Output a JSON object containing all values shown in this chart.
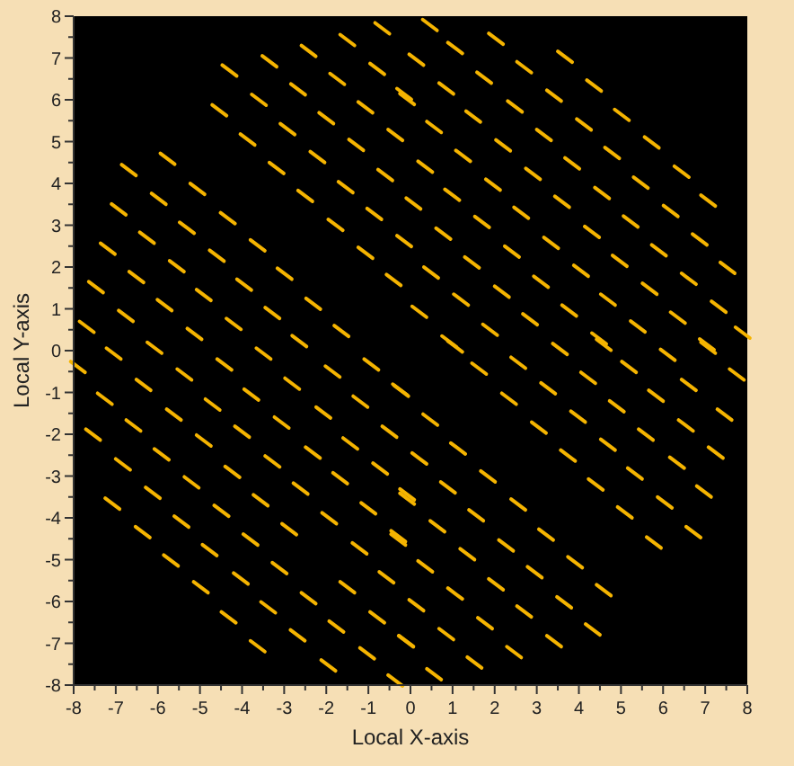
{
  "chart_data": {
    "type": "scatter",
    "xlabel": "Local X-axis",
    "ylabel": "Local Y-axis",
    "color": "#f5b400",
    "grid": false,
    "xlim": [
      -8,
      8
    ],
    "ylim": [
      -8,
      8
    ],
    "xticks": [
      -8,
      {
        "value": -7.5,
        "label": null
      },
      -7,
      {
        "value": -6.5,
        "label": null
      },
      -6,
      {
        "value": -5.5,
        "label": null
      },
      -5,
      {
        "value": -4.5,
        "label": null
      },
      -4,
      {
        "value": -3.5,
        "label": null
      },
      -3,
      {
        "value": -2.5,
        "label": null
      },
      -2,
      {
        "value": -1.5,
        "label": null
      },
      -1,
      {
        "value": -0.5,
        "label": null
      },
      0,
      {
        "value": 0.5,
        "label": null
      },
      1,
      {
        "value": 1.5,
        "label": null
      },
      2,
      {
        "value": 2.5,
        "label": null
      },
      3,
      {
        "value": 3.5,
        "label": null
      },
      4,
      {
        "value": 4.5,
        "label": null
      },
      5,
      {
        "value": 5.5,
        "label": null
      },
      6,
      {
        "value": 6.5,
        "label": null
      },
      7,
      {
        "value": 7.5,
        "label": null
      },
      8
    ],
    "yticks": [
      -8,
      {
        "value": -7.5,
        "label": null
      },
      -7,
      {
        "value": -6.5,
        "label": null
      },
      -6,
      {
        "value": -5.5,
        "label": null
      },
      -5,
      {
        "value": -4.5,
        "label": null
      },
      -4,
      {
        "value": -3.5,
        "label": null
      },
      -3,
      {
        "value": -2.5,
        "label": null
      },
      -2,
      {
        "value": -1.5,
        "label": null
      },
      -1,
      {
        "value": -0.5,
        "label": null
      },
      0,
      {
        "value": 0.5,
        "label": null
      },
      1,
      {
        "value": 1.5,
        "label": null
      },
      2,
      {
        "value": 2.5,
        "label": null
      },
      3,
      {
        "value": 3.5,
        "label": null
      },
      4,
      {
        "value": 4.5,
        "label": null
      },
      5,
      {
        "value": 5.5,
        "label": null
      },
      6,
      {
        "value": 6.5,
        "label": null
      },
      7,
      {
        "value": 7.5,
        "label": null
      },
      8
    ],
    "x": [
      -0.67,
      -2.42,
      -3.35,
      -4.3,
      -1.5,
      -0.79,
      -1.74,
      -2.67,
      -3.6,
      -4.54,
      -1.07,
      -0.15,
      -2.0,
      -2.92,
      -3.87,
      -0.36,
      -1.29,
      -2.21,
      -3.18,
      -5.77,
      -6.69,
      -0.6,
      -1.54,
      -2.5,
      -5.06,
      -5.98,
      -6.93,
      -0.86,
      -1.78,
      -4.34,
      -5.31,
      -6.26,
      -7.19,
      -0.15,
      -1.07,
      -3.63,
      -4.6,
      -5.55,
      -6.51,
      -7.47,
      -0.4,
      -2.99,
      -3.95,
      -4.91,
      -5.84,
      -6.76,
      -7.69,
      -2.31,
      -3.28,
      -4.2,
      -5.13,
      -1.64,
      -2.64,
      0.46,
      2.03,
      3.67,
      4.36,
      5.02,
      5.73,
      6.44,
      7.07,
      1.06,
      2.7,
      3.41,
      4.12,
      4.79,
      5.47,
      6.18,
      6.87,
      7.53,
      0.14,
      1.75,
      2.48,
      3.17,
      3.84,
      4.55,
      5.23,
      5.9,
      6.61,
      7.32,
      7.89,
      0.85,
      1.49,
      2.2,
      2.91,
      3.6,
      4.31,
      4.97,
      5.68,
      6.35,
      7.04,
      -0.08,
      0.56,
      1.25,
      1.96,
      2.63,
      3.34,
      4.05,
      4.69,
      5.4,
      0.35,
      0.99,
      1.7,
      2.41,
      3.1,
      3.77,
      4.48,
      0.07,
      0.78,
      1.46,
      2.17,
      2.84,
      0.49,
      1.2,
      1.89,
      0.21,
      0.92,
      -7.05,
      -6.08,
      -7.9,
      -6.34,
      -5.37,
      -4.42,
      -3.49,
      -7.26,
      -5.62,
      -4.7,
      -3.78,
      -2.81,
      -1.85,
      -0.93,
      -7.54,
      -6.58,
      -4.91,
      -4.0,
      -3.06,
      -2.07,
      -1.19,
      -0.25,
      -6.83,
      -5.91,
      -4.23,
      -3.28,
      -2.32,
      -1.43,
      -0.5,
      -7.08,
      -6.12,
      -5.2,
      -3.56,
      -2.61,
      -1.67,
      -0.72,
      -6.36,
      -5.44,
      -4.49,
      -1.93,
      -1.0,
      -0.08,
      -5.69,
      -4.77,
      -3.8,
      -2.88,
      -1.21,
      -0.29,
      -4.98,
      -4.03,
      -3.11,
      -1.5,
      -0.57,
      -4.32,
      -3.38,
      -2.42,
      -3.63,
      -2.68,
      -1.76,
      -0.79,
      -1.95,
      -1.03,
      -0.11,
      -0.36,
      1.06,
      3.55,
      4.59,
      6.11,
      7.07,
      7.75,
      1.63,
      2.56,
      4.22,
      5.19,
      6.61,
      -0.22,
      2.34,
      3.27,
      4.9,
      5.83,
      7.46,
      0.47,
      3.05,
      3.98,
      5.59,
      6.54,
      1.13,
      4.69,
      6.33,
      7.25,
      0.21,
      1.84,
      3.74,
      5.33,
      6.97,
      -0.08,
      0.89,
      2.56,
      4.4,
      6.04,
      0.64,
      1.56,
      3.22,
      5.09,
      6.72,
      -0.29,
      1.35,
      2.27,
      3.91,
      5.78,
      0.35,
      2.03,
      2.95,
      4.59,
      0.14,
      1.06,
      2.7,
      3.65,
      0.85,
      1.77,
      3.41,
      4.33,
      -0.1,
      1.52,
      2.46,
      0.56
    ],
    "values": [
      7.71,
      7.17,
      6.92,
      6.7,
      7.43,
      6.74,
      6.5,
      6.25,
      6.0,
      5.75,
      5.82,
      6.14,
      5.56,
      5.3,
      5.05,
      5.16,
      4.92,
      4.63,
      4.37,
      4.59,
      4.32,
      4.2,
      3.91,
      3.7,
      3.87,
      3.63,
      3.38,
      3.27,
      3.01,
      3.17,
      2.94,
      2.7,
      2.44,
      2.62,
      2.34,
      2.52,
      2.27,
      2.02,
      1.76,
      1.52,
      1.69,
      1.84,
      1.58,
      1.33,
      1.09,
      0.83,
      0.57,
      1.12,
      0.9,
      0.64,
      0.4,
      0.47,
      0.23,
      7.79,
      7.46,
      7.03,
      6.34,
      5.64,
      4.98,
      4.28,
      3.59,
      7.24,
      6.78,
      6.1,
      5.41,
      4.73,
      4.02,
      3.34,
      2.66,
      1.98,
      6.96,
      6.53,
      5.84,
      5.16,
      4.48,
      3.77,
      3.09,
      2.4,
      1.72,
      1.05,
      0.43,
      6.27,
      5.6,
      4.91,
      4.23,
      3.56,
      2.84,
      2.15,
      1.48,
      0.79,
      0.15,
      6.02,
      5.35,
      4.66,
      3.97,
      3.3,
      2.58,
      1.91,
      1.22,
      0.58,
      4.4,
      3.73,
      3.08,
      2.37,
      1.65,
      0.96,
      0.29,
      3.52,
      2.8,
      2.11,
      1.41,
      0.75,
      1.87,
      1.22,
      0.5,
      0.93,
      0.22,
      -0.07,
      0.07,
      -0.39,
      -0.82,
      -0.57,
      -0.33,
      -0.07,
      -1.15,
      -1.53,
      -1.29,
      -1.05,
      -0.79,
      -0.5,
      -0.33,
      -2.01,
      -1.79,
      -2.15,
      -1.94,
      -1.72,
      -1.48,
      -1.22,
      -0.93,
      -2.72,
      -2.48,
      -2.9,
      -2.65,
      -2.44,
      -2.22,
      -1.94,
      -3.66,
      -3.4,
      -3.15,
      -3.58,
      -3.3,
      -3.05,
      -2.82,
      -4.34,
      -4.09,
      -3.83,
      -4.01,
      -3.77,
      -3.44,
      -5.02,
      -4.77,
      -4.52,
      -4.27,
      -4.73,
      -4.44,
      -5.66,
      -5.45,
      -5.2,
      -5.66,
      -5.42,
      -6.38,
      -6.14,
      -5.92,
      -7.07,
      -6.81,
      -6.6,
      -6.38,
      -7.53,
      -7.24,
      -6.95,
      -7.89,
      0.1,
      0.04,
      0.14,
      -0.1,
      0.07,
      -0.57,
      -0.43,
      -0.29,
      -0.65,
      -0.39,
      -0.82,
      -0.96,
      -1.15,
      -0.9,
      -1.33,
      -1.08,
      -1.53,
      -1.65,
      -1.84,
      -1.58,
      -2.01,
      -1.79,
      -2.34,
      -2.25,
      -2.68,
      -2.44,
      -2.58,
      -3.01,
      -2.51,
      -2.94,
      -3.37,
      -3.54,
      -3.27,
      -3.68,
      -3.2,
      -3.63,
      -4.2,
      -3.94,
      -4.4,
      -3.87,
      -4.34,
      -4.52,
      -4.87,
      -4.66,
      -5.06,
      -4.59,
      -5.16,
      -5.59,
      -5.3,
      -5.73,
      -6.09,
      -5.81,
      -6.24,
      -6.02,
      -6.78,
      -6.52,
      -6.95,
      -6.67,
      -6.95,
      -7.46,
      -7.21,
      -7.74
    ]
  }
}
